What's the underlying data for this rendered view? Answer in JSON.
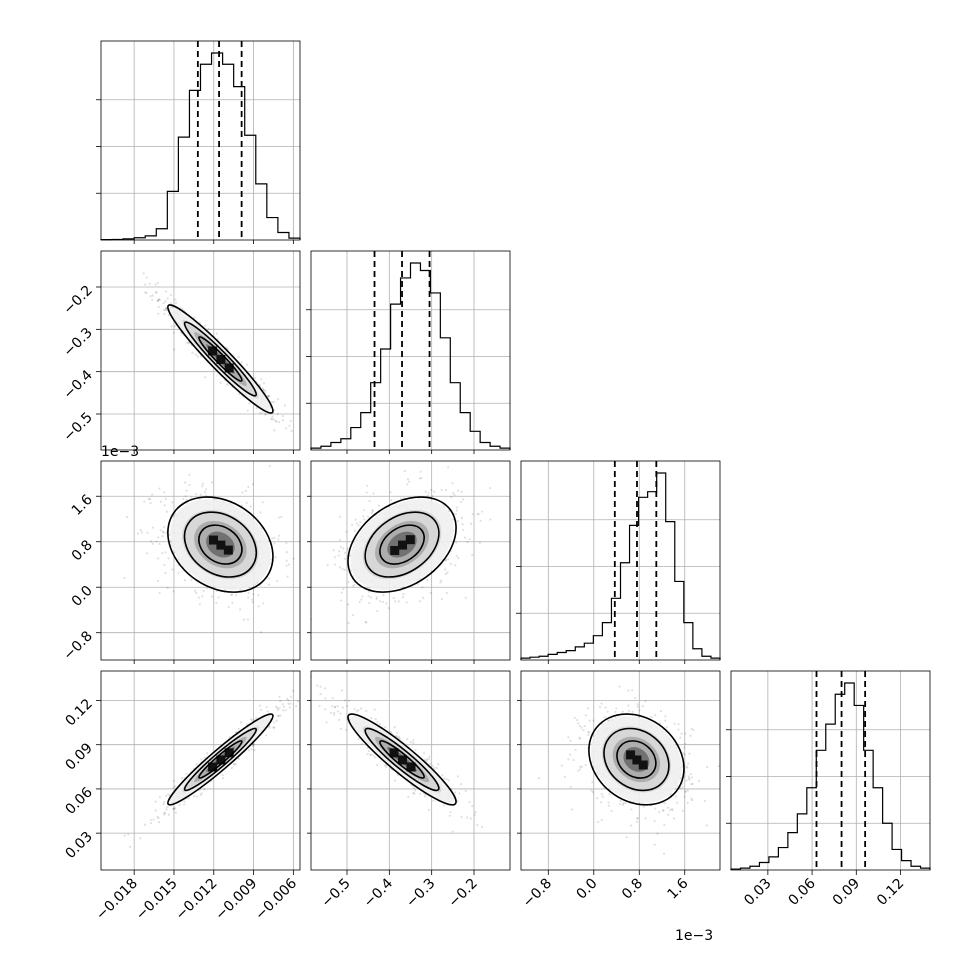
{
  "chart_data": {
    "type": "corner",
    "grid": true,
    "parameters": [
      {
        "range": [
          -0.0205,
          -0.0055
        ],
        "ticks": [
          -0.018,
          -0.015,
          -0.012,
          -0.009,
          -0.006
        ],
        "tick_labels": [
          "−0.018",
          "−0.015",
          "−0.012",
          "−0.009",
          "−0.006"
        ],
        "offset_label": "",
        "mean": -0.0115,
        "sigma": 0.0018,
        "quantiles": [
          -0.0132,
          -0.0116,
          -0.0099
        ],
        "hist_bins": [
          0.002,
          0.003,
          0.006,
          0.012,
          0.022,
          0.06,
          0.26,
          0.55,
          0.8,
          0.94,
          1.0,
          0.94,
          0.82,
          0.56,
          0.3,
          0.12,
          0.04,
          0.01
        ]
      },
      {
        "range": [
          -0.585,
          -0.115
        ],
        "ticks": [
          -0.5,
          -0.4,
          -0.3,
          -0.2
        ],
        "tick_labels": [
          "−0.5",
          "−0.4",
          "−0.3",
          "−0.2"
        ],
        "offset_label": "",
        "mean": -0.37,
        "sigma": 0.058,
        "quantiles": [
          -0.435,
          -0.37,
          -0.305
        ],
        "hist_bins": [
          0.01,
          0.02,
          0.04,
          0.06,
          0.12,
          0.2,
          0.36,
          0.54,
          0.78,
          0.92,
          1.0,
          0.96,
          0.84,
          0.6,
          0.36,
          0.2,
          0.1,
          0.04,
          0.02,
          0.01
        ]
      },
      {
        "range": [
          -1.28,
          2.22
        ],
        "ticks": [
          -0.8,
          0.0,
          0.8,
          1.6
        ],
        "tick_labels": [
          "−0.8",
          "0.0",
          "0.8",
          "1.6"
        ],
        "offset_label": "1e−3",
        "mean": 0.75,
        "sigma": 0.38,
        "quantiles": [
          0.37,
          0.76,
          1.1
        ],
        "hist_bins": [
          0.01,
          0.015,
          0.02,
          0.03,
          0.04,
          0.05,
          0.07,
          0.09,
          0.13,
          0.2,
          0.33,
          0.52,
          0.72,
          0.87,
          0.9,
          1.0,
          0.74,
          0.42,
          0.2,
          0.06,
          0.02,
          0.01
        ]
      },
      {
        "range": [
          0.005,
          0.14
        ],
        "ticks": [
          0.03,
          0.06,
          0.09,
          0.12
        ],
        "tick_labels": [
          "0.03",
          "0.06",
          "0.09",
          "0.12"
        ],
        "offset_label": "",
        "mean": 0.08,
        "sigma": 0.014,
        "quantiles": [
          0.063,
          0.08,
          0.096
        ],
        "hist_bins": [
          0.005,
          0.01,
          0.02,
          0.04,
          0.07,
          0.12,
          0.2,
          0.3,
          0.44,
          0.64,
          0.78,
          0.94,
          1.0,
          0.88,
          0.64,
          0.44,
          0.25,
          0.11,
          0.05,
          0.02,
          0.01
        ]
      }
    ],
    "correlations": {
      "1-0": -0.96,
      "2-0": -0.25,
      "2-1": 0.35,
      "3-0": 0.96,
      "3-1": -0.93,
      "3-2": -0.2
    }
  }
}
